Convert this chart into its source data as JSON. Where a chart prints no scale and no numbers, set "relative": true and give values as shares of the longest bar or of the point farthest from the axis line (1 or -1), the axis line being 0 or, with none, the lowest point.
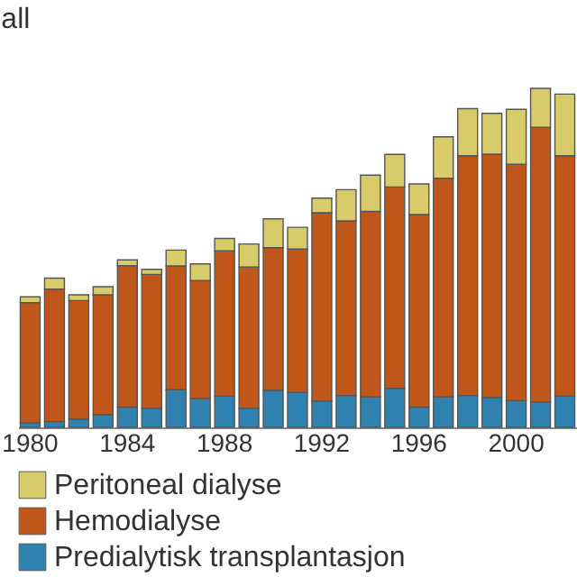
{
  "chart_data": {
    "type": "bar",
    "ylabel": "all",
    "stacked": true,
    "relative": true,
    "legend": "bottom",
    "grid": false,
    "categories": [
      "1980",
      null,
      null,
      null,
      "1984",
      null,
      null,
      null,
      "1988",
      null,
      null,
      null,
      "1992",
      null,
      null,
      null,
      "1996",
      null,
      null,
      null,
      "2000",
      null,
      null
    ],
    "series": [
      {
        "name": "Predialytisk transplantasjon",
        "color": "#2f82b0",
        "values": [
          0.013,
          0.017,
          0.024,
          0.038,
          0.06,
          0.056,
          0.111,
          0.085,
          0.092,
          0.056,
          0.109,
          0.103,
          0.077,
          0.094,
          0.09,
          0.115,
          0.06,
          0.09,
          0.094,
          0.088,
          0.079,
          0.075,
          0.092
        ]
      },
      {
        "name": "Hemodialyse",
        "color": "#c0561a",
        "values": [
          0.355,
          0.391,
          0.35,
          0.353,
          0.417,
          0.395,
          0.365,
          0.348,
          0.429,
          0.417,
          0.421,
          0.423,
          0.556,
          0.515,
          0.547,
          0.594,
          0.568,
          0.645,
          0.707,
          0.718,
          0.697,
          0.81,
          0.709
        ]
      },
      {
        "name": "Peritoneal dialyse",
        "color": "#d8cc6a",
        "values": [
          0.017,
          0.032,
          0.017,
          0.024,
          0.017,
          0.015,
          0.047,
          0.049,
          0.036,
          0.068,
          0.085,
          0.064,
          0.043,
          0.092,
          0.107,
          0.096,
          0.09,
          0.122,
          0.139,
          0.12,
          0.162,
          0.115,
          0.182
        ]
      }
    ]
  }
}
